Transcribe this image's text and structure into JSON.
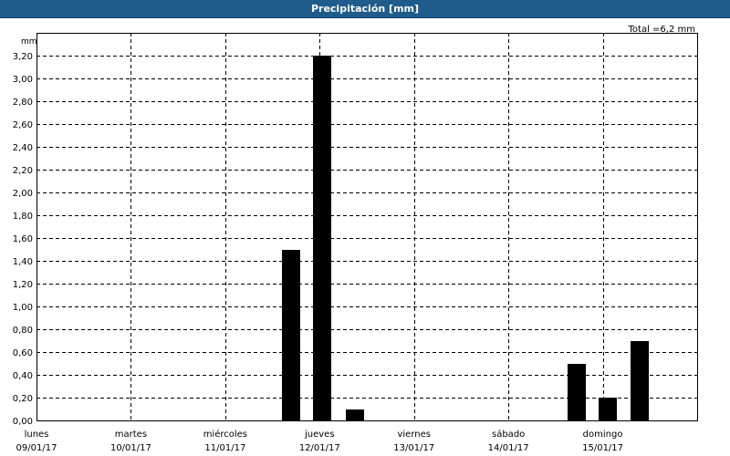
{
  "window": {
    "title": "Precipitación [mm]"
  },
  "chart_data": {
    "type": "bar",
    "title": "Precipitación [mm]",
    "total_label": "Total =6,2 mm",
    "ylabel": "mm",
    "ylim": [
      0,
      3.3
    ],
    "y_ticks": [
      "0,00",
      "0,20",
      "0,40",
      "0,60",
      "0,80",
      "1,00",
      "1,20",
      "1,40",
      "1,60",
      "1,80",
      "2,00",
      "2,20",
      "2,40",
      "2,60",
      "2,80",
      "3,00",
      "3,20"
    ],
    "y_tick_values": [
      0,
      0.2,
      0.4,
      0.6,
      0.8,
      1.0,
      1.2,
      1.4,
      1.6,
      1.8,
      2.0,
      2.2,
      2.4,
      2.6,
      2.8,
      3.0,
      3.2
    ],
    "days": [
      {
        "name": "lunes",
        "date": "09/01/17"
      },
      {
        "name": "martes",
        "date": "10/01/17"
      },
      {
        "name": "miércoles",
        "date": "11/01/17"
      },
      {
        "name": "jueves",
        "date": "12/01/17"
      },
      {
        "name": "viernes",
        "date": "13/01/17"
      },
      {
        "name": "sábado",
        "date": "14/01/17"
      },
      {
        "name": "domingo",
        "date": "15/01/17"
      }
    ],
    "bars": [
      {
        "day": 2.7,
        "value": 1.5
      },
      {
        "day": 3.03,
        "value": 3.2
      },
      {
        "day": 3.37,
        "value": 0.1
      },
      {
        "day": 5.72,
        "value": 0.5
      },
      {
        "day": 6.05,
        "value": 0.2
      },
      {
        "day": 6.39,
        "value": 0.7
      }
    ],
    "bar_color": "#000000",
    "grid": true,
    "grid_color": "#000000"
  }
}
